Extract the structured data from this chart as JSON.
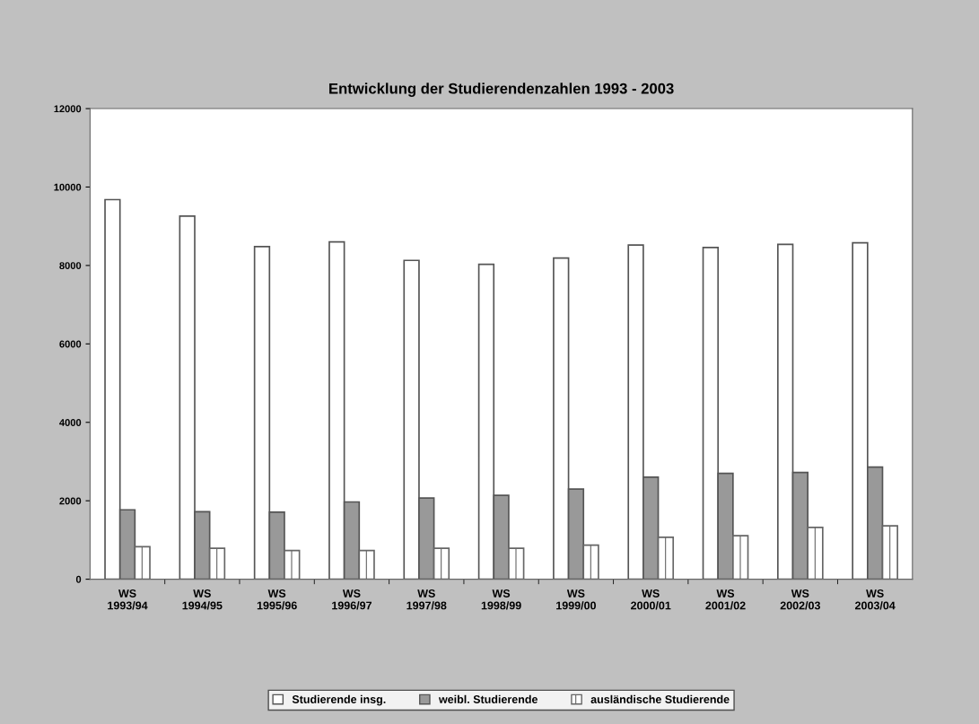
{
  "chart_data": {
    "type": "bar",
    "title": "Entwicklung der Studierendenzahlen 1993 - 2003",
    "categories": [
      "WS\n1993/94",
      "WS\n1994/95",
      "WS\n1995/96",
      "WS\n1996/97",
      "WS\n1997/98",
      "WS\n1998/99",
      "WS\n1999/00",
      "WS\n2000/01",
      "WS\n2001/02",
      "WS\n2002/03",
      "WS\n2003/04"
    ],
    "series": [
      {
        "name": "Studierende insg.",
        "color": "#ffffff",
        "values": [
          9680,
          9260,
          8480,
          8600,
          8130,
          8030,
          8190,
          8520,
          8460,
          8540,
          8580
        ]
      },
      {
        "name": "weibl. Studierende",
        "color": "#999999",
        "values": [
          1770,
          1720,
          1710,
          1970,
          2070,
          2140,
          2300,
          2600,
          2700,
          2720,
          2860
        ]
      },
      {
        "name": "ausländische Studierende",
        "color": "#666666",
        "values": [
          830,
          790,
          730,
          730,
          790,
          790,
          870,
          1070,
          1110,
          1320,
          1360
        ]
      }
    ],
    "ylim": [
      0,
      12000
    ],
    "yticks": [
      0,
      2000,
      4000,
      6000,
      8000,
      10000,
      12000
    ],
    "grid": false,
    "legend": "bottom"
  }
}
